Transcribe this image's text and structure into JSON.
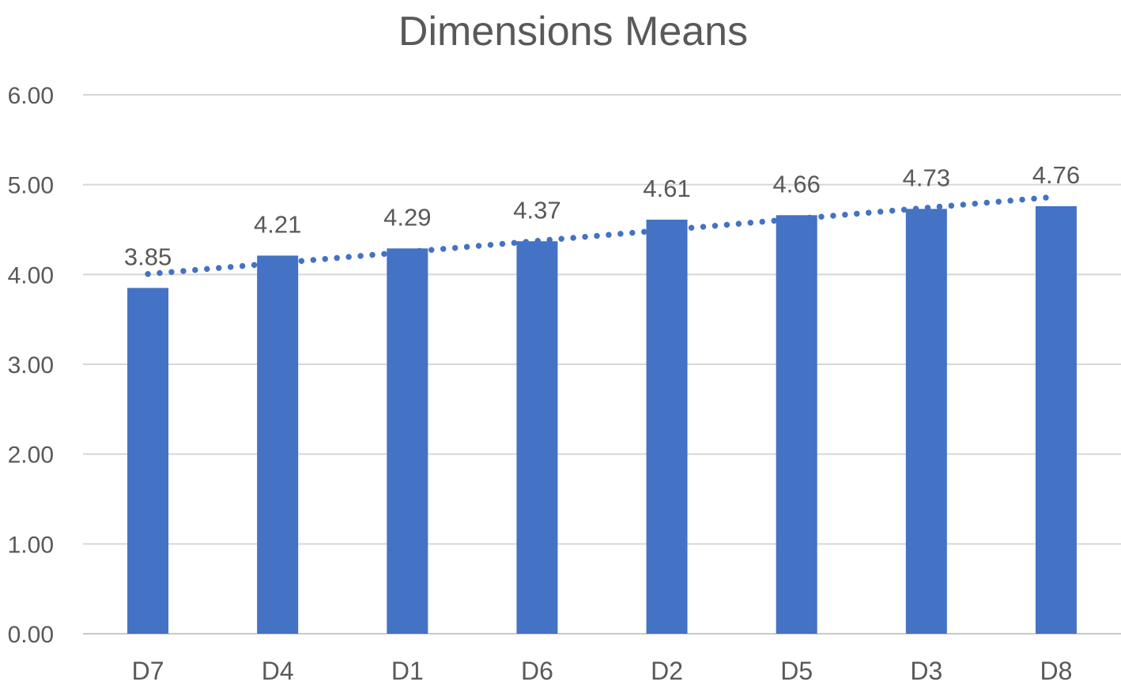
{
  "chart_data": {
    "type": "bar",
    "title": "Dimensions Means",
    "categories": [
      "D7",
      "D4",
      "D1",
      "D6",
      "D2",
      "D5",
      "D3",
      "D8"
    ],
    "values": [
      3.85,
      4.21,
      4.29,
      4.37,
      4.61,
      4.66,
      4.73,
      4.76
    ],
    "data_labels": [
      "3.85",
      "4.21",
      "4.29",
      "4.37",
      "4.61",
      "4.66",
      "4.73",
      "4.76"
    ],
    "xlabel": "",
    "ylabel": "",
    "ylim": [
      0,
      6
    ],
    "ytick_step": 1,
    "ytick_labels": [
      "0.00",
      "1.00",
      "2.00",
      "3.00",
      "4.00",
      "5.00",
      "6.00"
    ],
    "grid": true,
    "legend_position": "none",
    "trendline": {
      "type": "linear",
      "style": "dotted",
      "start_value": 4.0,
      "end_value": 4.87
    },
    "colors": {
      "bar": "#4472C4",
      "trendline": "#4472C4",
      "gridline": "#D6D6D6",
      "axis_line": "#C9C9C9",
      "text": "#595959"
    }
  }
}
